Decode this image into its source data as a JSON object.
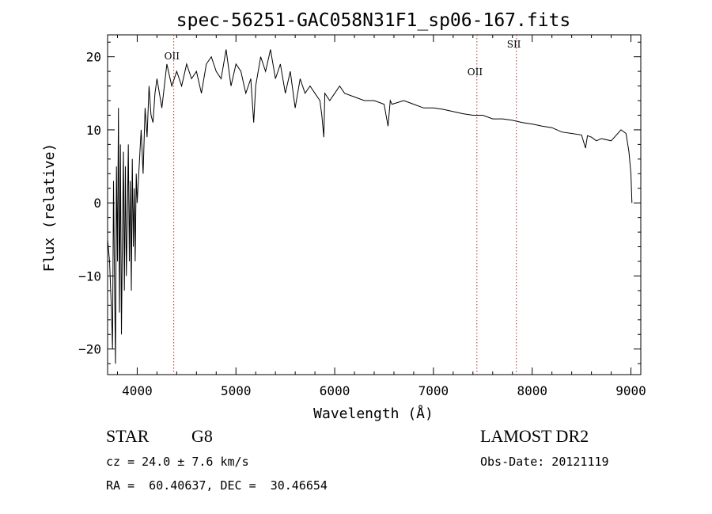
{
  "chart_data": {
    "type": "line",
    "title": "spec-56251-GAC058N31F1_sp06-167.fits",
    "xlabel": "Wavelength (Å)",
    "ylabel": "Flux (relative)",
    "xlim": [
      3700,
      9100
    ],
    "ylim": [
      -23.5,
      23
    ],
    "xticks": [
      4000,
      5000,
      6000,
      7000,
      8000,
      9000
    ],
    "yticks": [
      -20,
      -10,
      0,
      10,
      20
    ],
    "series": [
      {
        "name": "flux",
        "x": [
          3700,
          3720,
          3740,
          3750,
          3760,
          3770,
          3780,
          3790,
          3800,
          3810,
          3820,
          3830,
          3840,
          3850,
          3860,
          3870,
          3880,
          3890,
          3900,
          3910,
          3920,
          3930,
          3940,
          3950,
          3960,
          3970,
          3980,
          3990,
          4000,
          4020,
          4040,
          4060,
          4080,
          4100,
          4120,
          4140,
          4160,
          4180,
          4200,
          4250,
          4300,
          4350,
          4400,
          4450,
          4500,
          4550,
          4600,
          4650,
          4700,
          4750,
          4800,
          4850,
          4900,
          4950,
          5000,
          5050,
          5100,
          5150,
          5180,
          5200,
          5250,
          5300,
          5350,
          5400,
          5450,
          5500,
          5550,
          5600,
          5650,
          5700,
          5750,
          5800,
          5850,
          5870,
          5890,
          5900,
          5950,
          6000,
          6050,
          6100,
          6200,
          6300,
          6400,
          6500,
          6540,
          6563,
          6580,
          6700,
          6800,
          6900,
          7000,
          7100,
          7200,
          7300,
          7400,
          7500,
          7600,
          7700,
          7800,
          7900,
          8000,
          8100,
          8200,
          8300,
          8400,
          8500,
          8540,
          8560,
          8600,
          8650,
          8700,
          8800,
          8900,
          8950,
          8980,
          9000,
          9010
        ],
        "values": [
          -5,
          -8,
          -15,
          -20,
          3,
          -10,
          -22,
          5,
          -8,
          13,
          -15,
          8,
          -18,
          -5,
          7,
          -12,
          5,
          -10,
          -2,
          8,
          -8,
          3,
          -12,
          6,
          -6,
          2,
          -8,
          4,
          0,
          5,
          10,
          4,
          13,
          9,
          16,
          12,
          11,
          15,
          17,
          13,
          19,
          16,
          18,
          16,
          19,
          17,
          18,
          15,
          19,
          20,
          18,
          17,
          21,
          16,
          19,
          18,
          15,
          17,
          11,
          16,
          20,
          18,
          21,
          17,
          19,
          15,
          18,
          13,
          17,
          15,
          16,
          15,
          14,
          12,
          9,
          15,
          14,
          15,
          16,
          15,
          14.5,
          14,
          14,
          13.5,
          10.5,
          14,
          13.5,
          14,
          13.5,
          13,
          13,
          12.8,
          12.5,
          12.2,
          12,
          12,
          11.5,
          11.5,
          11.3,
          11,
          10.8,
          10.5,
          10.3,
          9.7,
          9.5,
          9.3,
          7.5,
          9.2,
          9,
          8.5,
          8.8,
          8.5,
          10,
          9.5,
          7,
          4,
          0
        ]
      }
    ],
    "lines": [
      {
        "label": "OII",
        "x": 4370
      },
      {
        "label": "OII",
        "x": 7440
      },
      {
        "label": "SII",
        "x": 7840
      }
    ]
  },
  "info": {
    "object_class": "STAR",
    "subclass": "G8",
    "survey": "LAMOST DR2",
    "cz": "cz = 24.0 ± 7.6 km/s",
    "obs_date": "Obs-Date: 20121119",
    "coords": "RA =  60.40637, DEC =  30.46654"
  },
  "colors": {
    "line_marker": "#b03030",
    "spectrum": "#000000"
  }
}
